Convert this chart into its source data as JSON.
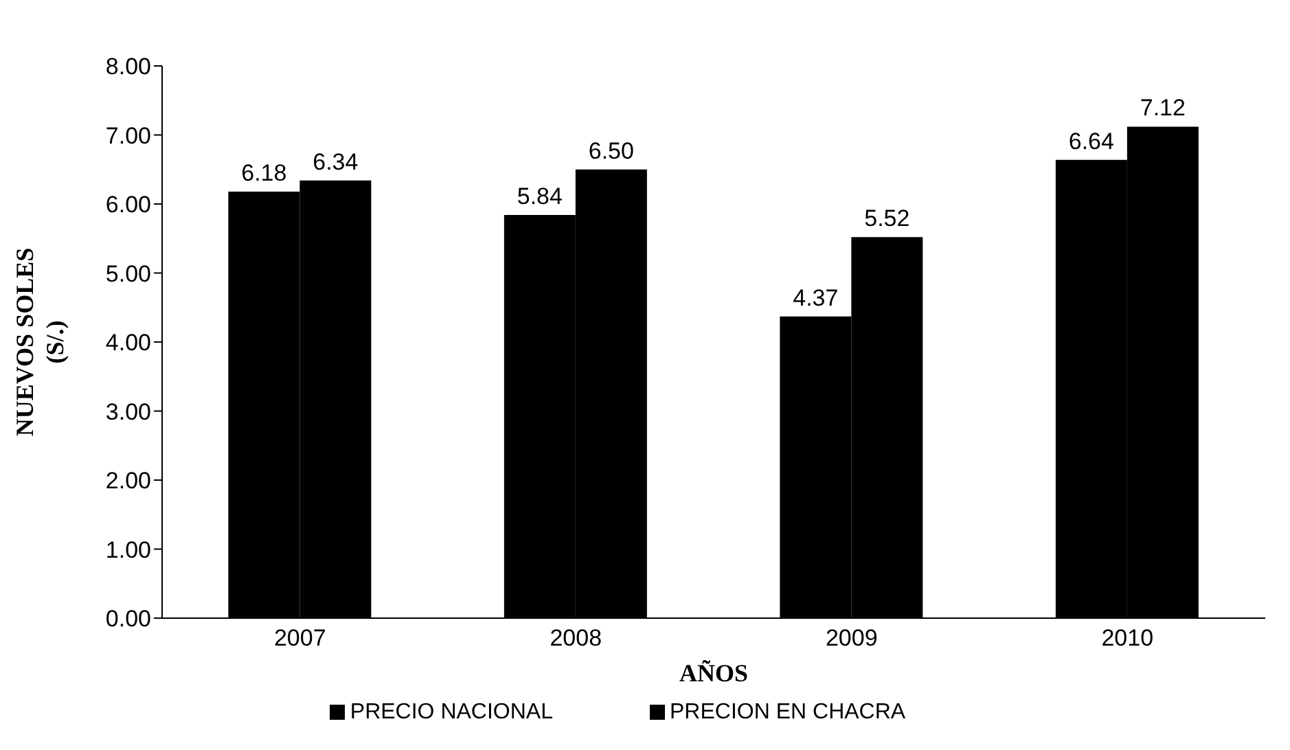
{
  "chart_data": {
    "type": "bar",
    "xlabel": "AÑOS",
    "ylabel": "NUEVOS SOLES (S/.)",
    "categories": [
      "2007",
      "2008",
      "2009",
      "2010"
    ],
    "series": [
      {
        "name": "PRECIO NACIONAL",
        "color": "#000000",
        "values": [
          6.18,
          5.84,
          4.37,
          6.64
        ],
        "value_labels": [
          "6.18",
          "5.84",
          "4.37",
          "6.64"
        ]
      },
      {
        "name": "PRECION EN CHACRA",
        "color": "#000000",
        "values": [
          6.34,
          6.5,
          5.52,
          7.12
        ],
        "value_labels": [
          "6.34",
          "6.50",
          "5.52",
          "7.12"
        ]
      }
    ],
    "ylim": [
      0,
      8
    ],
    "yticks": [
      {
        "value": 0,
        "label": "0.00"
      },
      {
        "value": 1,
        "label": "1.00"
      },
      {
        "value": 2,
        "label": "2.00"
      },
      {
        "value": 3,
        "label": "3.00"
      },
      {
        "value": 4,
        "label": "4.00"
      },
      {
        "value": 5,
        "label": "5.00"
      },
      {
        "value": 6,
        "label": "6.00"
      },
      {
        "value": 7,
        "label": "7.00"
      },
      {
        "value": 8,
        "label": "8.00"
      }
    ],
    "grid": false,
    "legend": "bottom"
  }
}
